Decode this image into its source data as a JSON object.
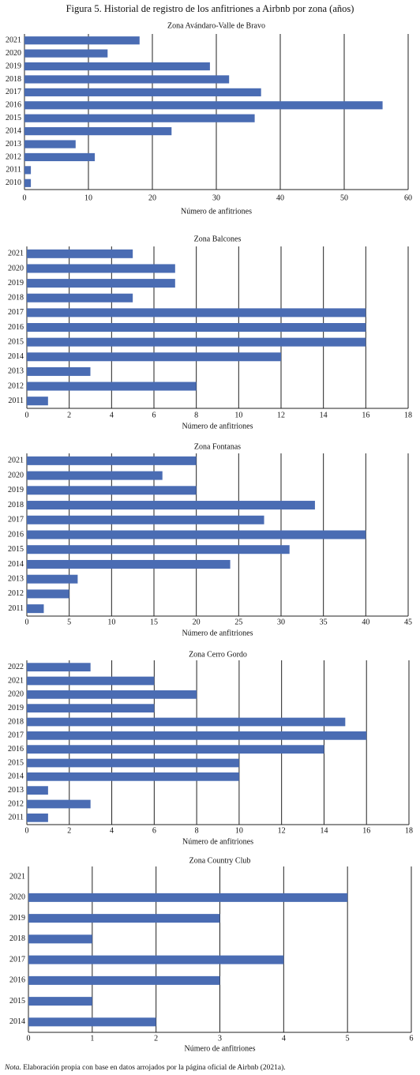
{
  "title": "Figura 5. Historial de registro de los anfitriones a Airbnb por zona (años)",
  "chart_data": [
    {
      "type": "bar",
      "orientation": "horizontal",
      "title": "Zona Avándaro-Valle de Bravo",
      "x_label": "Número de anfitriones",
      "categories": [
        "2021",
        "2020",
        "2019",
        "2018",
        "2017",
        "2016",
        "2015",
        "2014",
        "2013",
        "2012",
        "2011",
        "2010"
      ],
      "values": [
        18,
        13,
        29,
        32,
        37,
        56,
        36,
        23,
        8,
        11,
        1,
        1
      ],
      "color": "#4a6cb3",
      "xlim": [
        0,
        60
      ],
      "xticks": [
        0,
        10,
        20,
        30,
        40,
        50,
        60
      ],
      "grid": true
    },
    {
      "type": "bar",
      "orientation": "horizontal",
      "title": "Zona Balcones",
      "x_label": "Número de anfitriones",
      "categories": [
        "2021",
        "2020",
        "2019",
        "2018",
        "2017",
        "2016",
        "2015",
        "2014",
        "2013",
        "2012",
        "2011"
      ],
      "values": [
        5,
        7,
        7,
        5,
        16,
        16,
        16,
        12,
        3,
        8,
        1
      ],
      "color": "#4a6cb3",
      "xlim": [
        0,
        18
      ],
      "xticks": [
        0,
        2,
        4,
        6,
        8,
        10,
        12,
        14,
        16,
        18
      ],
      "grid": true
    },
    {
      "type": "bar",
      "orientation": "horizontal",
      "title": "Zona Fontanas",
      "x_label": "Número de anfitriones",
      "categories": [
        "2021",
        "2020",
        "2019",
        "2018",
        "2017",
        "2016",
        "2015",
        "2014",
        "2013",
        "2012",
        "2011"
      ],
      "values": [
        20,
        16,
        20,
        34,
        28,
        40,
        31,
        24,
        6,
        5,
        2
      ],
      "color": "#4a6cb3",
      "xlim": [
        0,
        45
      ],
      "xticks": [
        0,
        5,
        10,
        15,
        20,
        25,
        30,
        35,
        40,
        45
      ],
      "grid": true
    },
    {
      "type": "bar",
      "orientation": "horizontal",
      "title": "Zona Cerro Gordo",
      "x_label": "Número de anfitriones",
      "categories": [
        "2022",
        "2021",
        "2020",
        "2019",
        "2018",
        "2017",
        "2016",
        "2015",
        "2014",
        "2013",
        "2012",
        "2011"
      ],
      "values": [
        3,
        6,
        8,
        6,
        15,
        16,
        14,
        10,
        10,
        1,
        3,
        1
      ],
      "color": "#4a6cb3",
      "xlim": [
        0,
        18
      ],
      "xticks": [
        0,
        2,
        4,
        6,
        8,
        10,
        12,
        14,
        16,
        18
      ],
      "grid": true
    },
    {
      "type": "bar",
      "orientation": "horizontal",
      "title": "Zona Country Club",
      "x_label": "Número de anfitriones",
      "categories": [
        "2021",
        "2020",
        "2019",
        "2018",
        "2017",
        "2016",
        "2015",
        "2014"
      ],
      "values": [
        0,
        5,
        3,
        1,
        4,
        3,
        1,
        2
      ],
      "color": "#4a6cb3",
      "xlim": [
        0,
        6
      ],
      "xticks": [
        0,
        1,
        2,
        3,
        4,
        5,
        6
      ],
      "grid": true
    }
  ],
  "note": {
    "label": "Nota.",
    "text": "Elaboración propia con base en datos arrojados por la página oficial de Airbnb (2021a)."
  }
}
